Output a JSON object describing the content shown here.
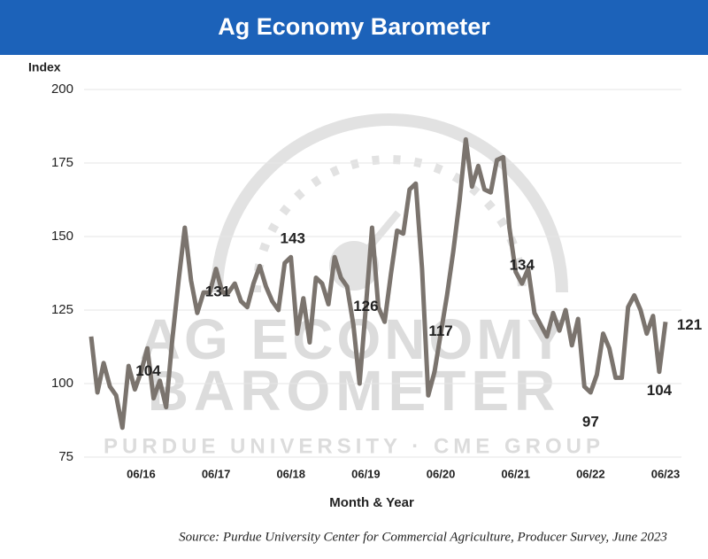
{
  "chart_data": {
    "type": "line",
    "title": "Ag Economy Barometer",
    "y_label": "Index",
    "x_label": "Month & Year",
    "source": "Source: Purdue University Center for Commercial Agriculture, Producer Survey, June 2023",
    "watermark": [
      "AG ECONOMY",
      "BAROMETER",
      "PURDUE UNIVERSITY · CME GROUP"
    ],
    "color": "#7b746e",
    "grid": true,
    "ylim": [
      75,
      200
    ],
    "yticks": [
      75,
      100,
      125,
      150,
      175,
      200
    ],
    "categories": [
      null,
      null,
      null,
      null,
      null,
      null,
      null,
      null,
      "06/16",
      null,
      null,
      null,
      null,
      null,
      null,
      null,
      null,
      null,
      null,
      null,
      "06/17",
      null,
      null,
      null,
      null,
      null,
      null,
      null,
      null,
      null,
      null,
      null,
      "06/18",
      null,
      null,
      null,
      null,
      null,
      null,
      null,
      null,
      null,
      null,
      null,
      "06/19",
      null,
      null,
      null,
      null,
      null,
      null,
      null,
      null,
      null,
      null,
      null,
      "06/20",
      null,
      null,
      null,
      null,
      null,
      null,
      null,
      null,
      null,
      null,
      null,
      "06/21",
      null,
      null,
      null,
      null,
      null,
      null,
      null,
      null,
      null,
      null,
      null,
      "06/22",
      null,
      null,
      null,
      null,
      null,
      null,
      null,
      null,
      null,
      null,
      null,
      "06/23"
    ],
    "values": [
      116,
      97,
      107,
      99,
      96,
      85,
      106,
      98,
      104,
      112,
      95,
      101,
      92,
      115,
      135,
      153,
      135,
      124,
      131,
      131,
      139,
      131,
      131,
      134,
      128,
      126,
      134,
      140,
      133,
      128,
      125,
      141,
      143,
      117,
      129,
      114,
      136,
      134,
      127,
      143,
      136,
      133,
      120,
      100,
      126,
      153,
      126,
      121,
      137,
      152,
      151,
      166,
      168,
      139,
      96,
      104,
      117,
      130,
      145,
      162,
      183,
      167,
      174,
      166,
      165,
      176,
      177,
      153,
      138,
      134,
      139,
      124,
      120,
      116,
      124,
      118,
      125,
      113,
      122,
      99,
      97,
      103,
      117,
      112,
      102,
      102,
      126,
      130,
      125,
      117,
      123,
      104,
      121
    ],
    "labeled_indices": [
      8,
      18,
      32,
      44,
      56,
      69,
      80,
      91,
      92
    ]
  }
}
